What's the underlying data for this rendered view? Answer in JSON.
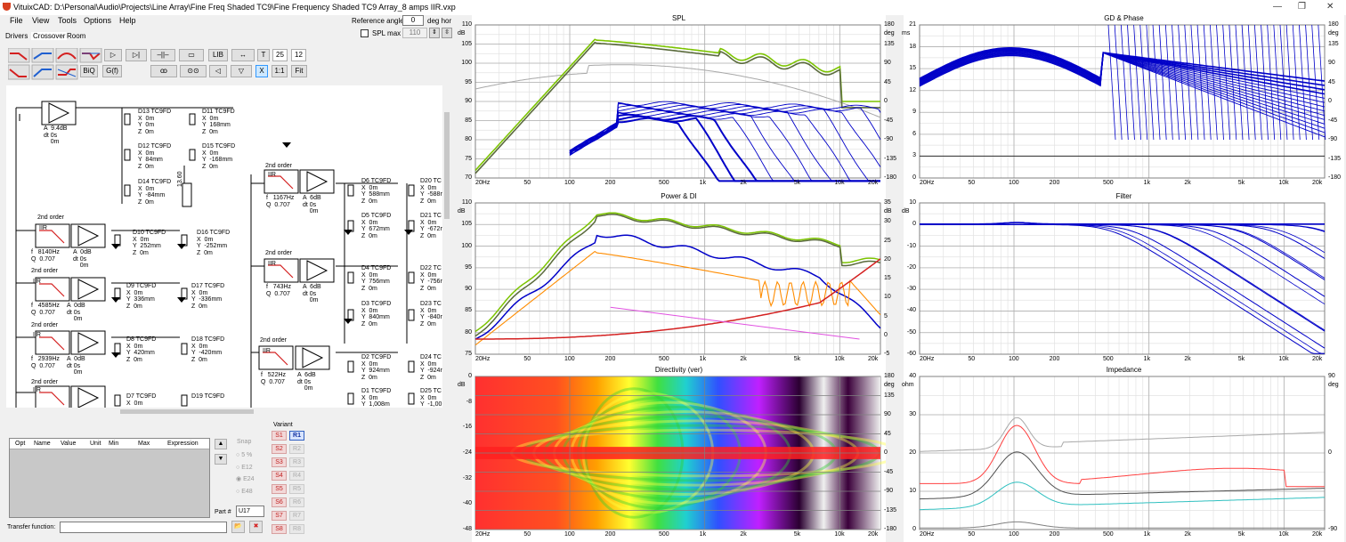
{
  "window": {
    "title": "VituixCAD: D:\\Personal\\Audio\\Projects\\Line Array\\Fine Freq Shaded TC9\\Fine Frequency Shaded TC9 Array_8 amps IIR.vxp",
    "minimize": "—",
    "maximize": "❐",
    "close": "✕"
  },
  "menu": {
    "file": "File",
    "view": "View",
    "tools": "Tools",
    "options": "Options",
    "help": "Help"
  },
  "tabs": {
    "drivers": "Drivers",
    "crossover": "Crossover",
    "room": "Room"
  },
  "reference": {
    "label": "Reference angle",
    "value": "0",
    "unit": "deg hor",
    "spl_max_label": "SPL max",
    "spl_max_value": "110"
  },
  "toolbar": {
    "lib": "LIB",
    "t": "T",
    "n25": "25",
    "n12": "12",
    "biq": "BiQ",
    "gf": "G(f)",
    "x": "X",
    "one_to_one": "1:1",
    "fit": "Fit"
  },
  "schematic": {
    "a1": "A  9.4dB\ndt 0s\n    0m",
    "d13": "D13 TC9FD\nX  0m\nY  0m\nZ  0m",
    "d11": "D11 TC9FD\nX  0m\nY  168mm\nZ  0m",
    "d12": "D12 TC9FD\nX  0m\nY  84mm\nZ  0m",
    "d15": "D15 TC9FD\nX  0m\nY  -168mm\nZ  0m",
    "d14": "D14 TC9FD\nX  0m\nY  -84mm\nZ  0m",
    "r13": "13.60",
    "so1": "2nd order",
    "so2": "2nd order",
    "so3": "2nd order",
    "so4": "2nd order",
    "so5": "2nd order",
    "so6": "2nd order",
    "so7": "2nd order",
    "so8": "2nd order",
    "iir": "IIR",
    "f1": "f   1167Hz\nQ  0.707",
    "a8": "A  6dB\ndt 0s\n    0m",
    "d6": "D6 TC9FD\nX  0m\nY  588mm\nZ  0m",
    "d20": "D20 TC\nX  0m\nY  -588r\nZ  0m",
    "d5": "D5 TC9FD\nX  0m\nY  672mm\nZ  0m",
    "d21": "D21 TC\nX  0m\nY  -672r\nZ  0m",
    "f2": "f   8140Hz\nQ  0.707",
    "a4": "A  0dB\ndt 0s\n    0m",
    "d10": "D10 TC9FD\nX  0m\nY  252mm\nZ  0m",
    "d16": "D16 TC9FD\nX  0m\nY  -252mm\nZ  0m",
    "f3": "f   743Hz\nQ  0.707",
    "a10": "A  6dB\ndt 0s\n    0m",
    "d4": "D4 TC9FD\nX  0m\nY  756mm\nZ  0m",
    "d22": "D22 TC\nX  0m\nY  -756r\nZ  0m",
    "f4": "f   4585Hz\nQ  0.707",
    "a5": "A  0dB\ndt 0s\n    0m",
    "d9": "D9 TC9FD\nX  0m\nY  336mm\nZ  0m",
    "d17": "D17 TC9FD\nX  0m\nY  -336mm\nZ  0m",
    "d3": "D3 TC9FD\nX  0m\nY  840mm\nZ  0m",
    "d23": "D23 TC\nX  0m\nY  -840r\nZ  0m",
    "f5": "f   2939Hz\nQ  0.707",
    "a6": "A  0dB\ndt 0s\n    0m",
    "d8": "D8 TC9FD\nX  0m\nY  420mm\nZ  0m",
    "d18": "D18 TC9FD\nX  0m\nY  -420mm\nZ  0m",
    "f6": "f   522Hz\nQ  0.707",
    "a12": "A  6dB\ndt 0s\n    0m",
    "d2": "D2 TC9FD\nX  0m\nY  924mm\nZ  0m",
    "d24": "D24 TC\nX  0m\nY  -924r\nZ  0m",
    "d7": "D7 TC9FD\nX  0m",
    "d19": "D19 TC9FD",
    "d1": "D1 TC9FD\nX  0m\nY  1,008m",
    "d25": "D25 TC\nX  0m\nY  -1,00"
  },
  "opt_table": {
    "headers": [
      "Opt",
      "Name",
      "Value",
      "Unit",
      "Min",
      "Max",
      "Expression"
    ]
  },
  "snap": {
    "label": "Snap",
    "options": [
      "5 %",
      "E12",
      "E24",
      "E48"
    ]
  },
  "variant": {
    "label": "Variant",
    "s": [
      "S1",
      "S2",
      "S3",
      "S4",
      "S5",
      "S6",
      "S7",
      "S8"
    ],
    "r": [
      "R1",
      "R2",
      "R3",
      "R4",
      "R5",
      "R6",
      "R7",
      "R8"
    ]
  },
  "part": {
    "label": "Part #",
    "value": "U17"
  },
  "transfer": {
    "label": "Transfer function:"
  },
  "freq_ticks": [
    "20Hz",
    "50",
    "100",
    "200",
    "500",
    "1k",
    "2k",
    "5k",
    "10k",
    "20k"
  ],
  "charts": {
    "spl": {
      "title": "SPL",
      "left_unit": "dB",
      "right_unit": "deg",
      "left": [
        "110",
        "105",
        "100",
        "95",
        "90",
        "85",
        "80",
        "75",
        "70"
      ],
      "right": [
        "180",
        "135",
        "90",
        "45",
        "0",
        "-45",
        "-90",
        "-135",
        "-180"
      ]
    },
    "gd": {
      "title": "GD & Phase",
      "left_unit": "ms",
      "right_unit": "deg",
      "left": [
        "21",
        "18",
        "15",
        "12",
        "9",
        "6",
        "3",
        "0"
      ],
      "right": [
        "180",
        "135",
        "90",
        "45",
        "0",
        "-45",
        "-90",
        "-135",
        "-180"
      ]
    },
    "power": {
      "title": "Power & DI",
      "left_unit": "dB",
      "right_unit": "dB",
      "left": [
        "110",
        "105",
        "100",
        "95",
        "90",
        "85",
        "80",
        "75"
      ],
      "right": [
        "35",
        "30",
        "25",
        "20",
        "15",
        "10",
        "5",
        "0",
        "-5"
      ]
    },
    "filter": {
      "title": "Filter",
      "left_unit": "dB",
      "left": [
        "10",
        "0",
        "-10",
        "-20",
        "-30",
        "-40",
        "-50",
        "-60"
      ]
    },
    "directivity": {
      "title": "Directivity (ver)",
      "left_unit": "dB",
      "right_unit": "deg",
      "left": [
        "0",
        "-8",
        "-16",
        "-24",
        "-32",
        "-40",
        "-48"
      ],
      "right": [
        "180",
        "135",
        "90",
        "45",
        "0",
        "-45",
        "-90",
        "-135",
        "-180"
      ]
    },
    "impedance": {
      "title": "Impedance",
      "left_unit": "ohm",
      "right_unit": "deg",
      "left": [
        "40",
        "30",
        "20",
        "10",
        "0"
      ],
      "right": [
        "90",
        "0",
        "-90"
      ]
    }
  },
  "colors": {
    "blue": "#0000c8",
    "olive": "#5a6a3c",
    "green": "#7cc400",
    "gray": "#a0a0a0",
    "orange": "#ff8c00",
    "red": "#d42020",
    "magenta": "#e050e0",
    "teal": "#30c0c0"
  }
}
